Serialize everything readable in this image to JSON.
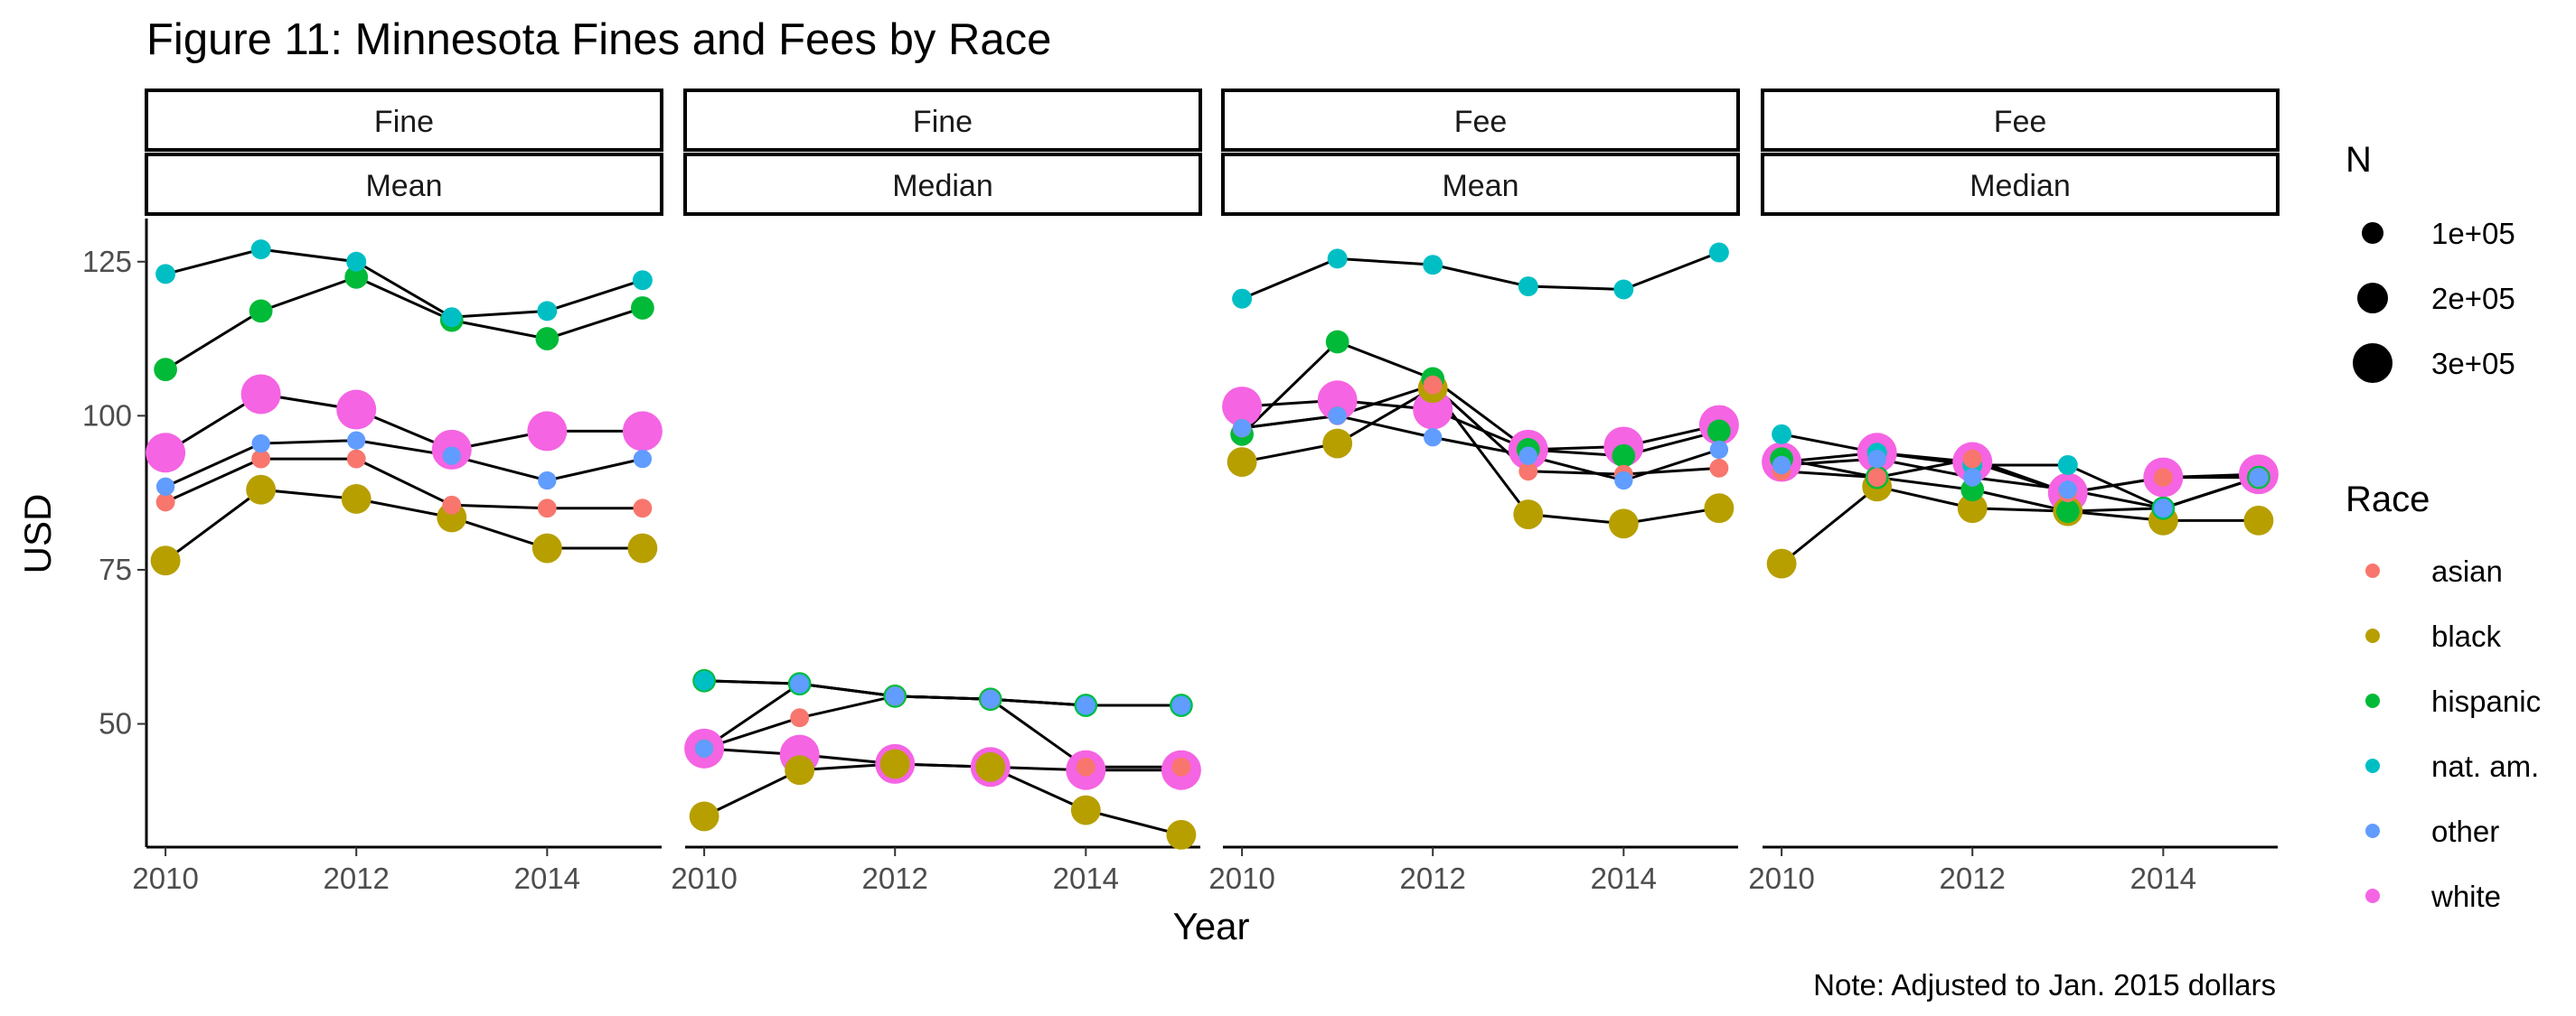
{
  "chart_data": {
    "type": "line",
    "title": "Figure 11: Minnesota Fines and Fees by Race",
    "xlabel": "Year",
    "ylabel": "USD",
    "caption": "Note: Adjusted to Jan. 2015 dollars",
    "x": [
      2010,
      2011,
      2012,
      2013,
      2014,
      2015
    ],
    "x_ticks": [
      "2010",
      "2012",
      "2014"
    ],
    "y_ticks": [
      "50",
      "75",
      "100",
      "125"
    ],
    "ylim": [
      30,
      132
    ],
    "grid": false,
    "legend_position": "right",
    "size_legend": {
      "title": "N",
      "entries": [
        {
          "label": "1e+05",
          "value": 100000
        },
        {
          "label": "2e+05",
          "value": 200000
        },
        {
          "label": "3e+05",
          "value": 300000
        }
      ]
    },
    "color_legend": {
      "title": "Race",
      "entries": [
        {
          "label": "asian",
          "color": "#F8766D"
        },
        {
          "label": "black",
          "color": "#B79F00"
        },
        {
          "label": "hispanic",
          "color": "#00BA38"
        },
        {
          "label": "nat. am.",
          "color": "#00BFC4"
        },
        {
          "label": "other",
          "color": "#619CFF"
        },
        {
          "label": "white",
          "color": "#F564E3"
        }
      ]
    },
    "series_counts": {
      "asian": 10000,
      "black": 120000,
      "hispanic": 40000,
      "nat. am.": 15000,
      "other": 8000,
      "white": 330000
    },
    "panels": [
      {
        "strip_top": "Fine",
        "strip_bottom": "Mean",
        "series": [
          {
            "name": "nat. am.",
            "values": [
              123,
              127,
              125,
              116,
              117,
              122
            ]
          },
          {
            "name": "hispanic",
            "values": [
              107.5,
              117,
              122.5,
              115.5,
              112.5,
              117.5
            ]
          },
          {
            "name": "white",
            "values": [
              94,
              103.5,
              101,
              94.5,
              97.5,
              97.5
            ]
          },
          {
            "name": "other",
            "values": [
              88.5,
              95.5,
              96,
              93.5,
              89.5,
              93
            ]
          },
          {
            "name": "asian",
            "values": [
              86,
              93,
              93,
              85.5,
              85,
              85
            ]
          },
          {
            "name": "black",
            "values": [
              76.5,
              88,
              86.5,
              83.5,
              78.5,
              78.5
            ]
          }
        ]
      },
      {
        "strip_top": "Fine",
        "strip_bottom": "Median",
        "series": [
          {
            "name": "hispanic",
            "values": [
              57,
              56.5,
              54.5,
              54,
              53,
              53
            ]
          },
          {
            "name": "nat. am.",
            "values": [
              57,
              56.5,
              54.5,
              54,
              53,
              53
            ]
          },
          {
            "name": "other",
            "values": [
              46,
              56.5,
              54.5,
              54,
              53,
              53
            ]
          },
          {
            "name": "asian",
            "values": [
              46,
              51,
              54.5,
              54,
              43,
              43
            ]
          },
          {
            "name": "white",
            "values": [
              46,
              45,
              43.5,
              43,
              42.5,
              42.5
            ]
          },
          {
            "name": "black",
            "values": [
              35,
              42.5,
              43.5,
              43,
              36,
              32
            ]
          }
        ]
      },
      {
        "strip_top": "Fee",
        "strip_bottom": "Mean",
        "series": [
          {
            "name": "nat. am.",
            "values": [
              119,
              125.5,
              124.5,
              121,
              120.5,
              126.5
            ]
          },
          {
            "name": "hispanic",
            "values": [
              97,
              112,
              106,
              94.5,
              93.5,
              97.5
            ]
          },
          {
            "name": "white",
            "values": [
              101.5,
              102.5,
              101,
              94.5,
              95,
              98.5
            ]
          },
          {
            "name": "other",
            "values": [
              98,
              100,
              96.5,
              93.5,
              89.5,
              94.5
            ]
          },
          {
            "name": "asian",
            "values": [
              98,
              100,
              105,
              91,
              90.5,
              91.5
            ]
          },
          {
            "name": "black",
            "values": [
              92.5,
              95.5,
              104.5,
              84,
              82.5,
              85
            ]
          }
        ]
      },
      {
        "strip_top": "Fee",
        "strip_bottom": "Median",
        "series": [
          {
            "name": "nat. am.",
            "values": [
              97,
              94,
              92,
              92,
              85,
              90
            ]
          },
          {
            "name": "hispanic",
            "values": [
              93,
              90,
              88,
              84.5,
              85,
              90
            ]
          },
          {
            "name": "asian",
            "values": [
              91,
              90,
              93,
              87.5,
              90,
              90
            ]
          },
          {
            "name": "other",
            "values": [
              92,
              93,
              90,
              88,
              85,
              90
            ]
          },
          {
            "name": "white",
            "values": [
              92.5,
              94,
              92.5,
              87.5,
              90,
              90.5
            ]
          },
          {
            "name": "black",
            "values": [
              76,
              88.5,
              85,
              84.5,
              83,
              83
            ]
          }
        ]
      }
    ]
  }
}
